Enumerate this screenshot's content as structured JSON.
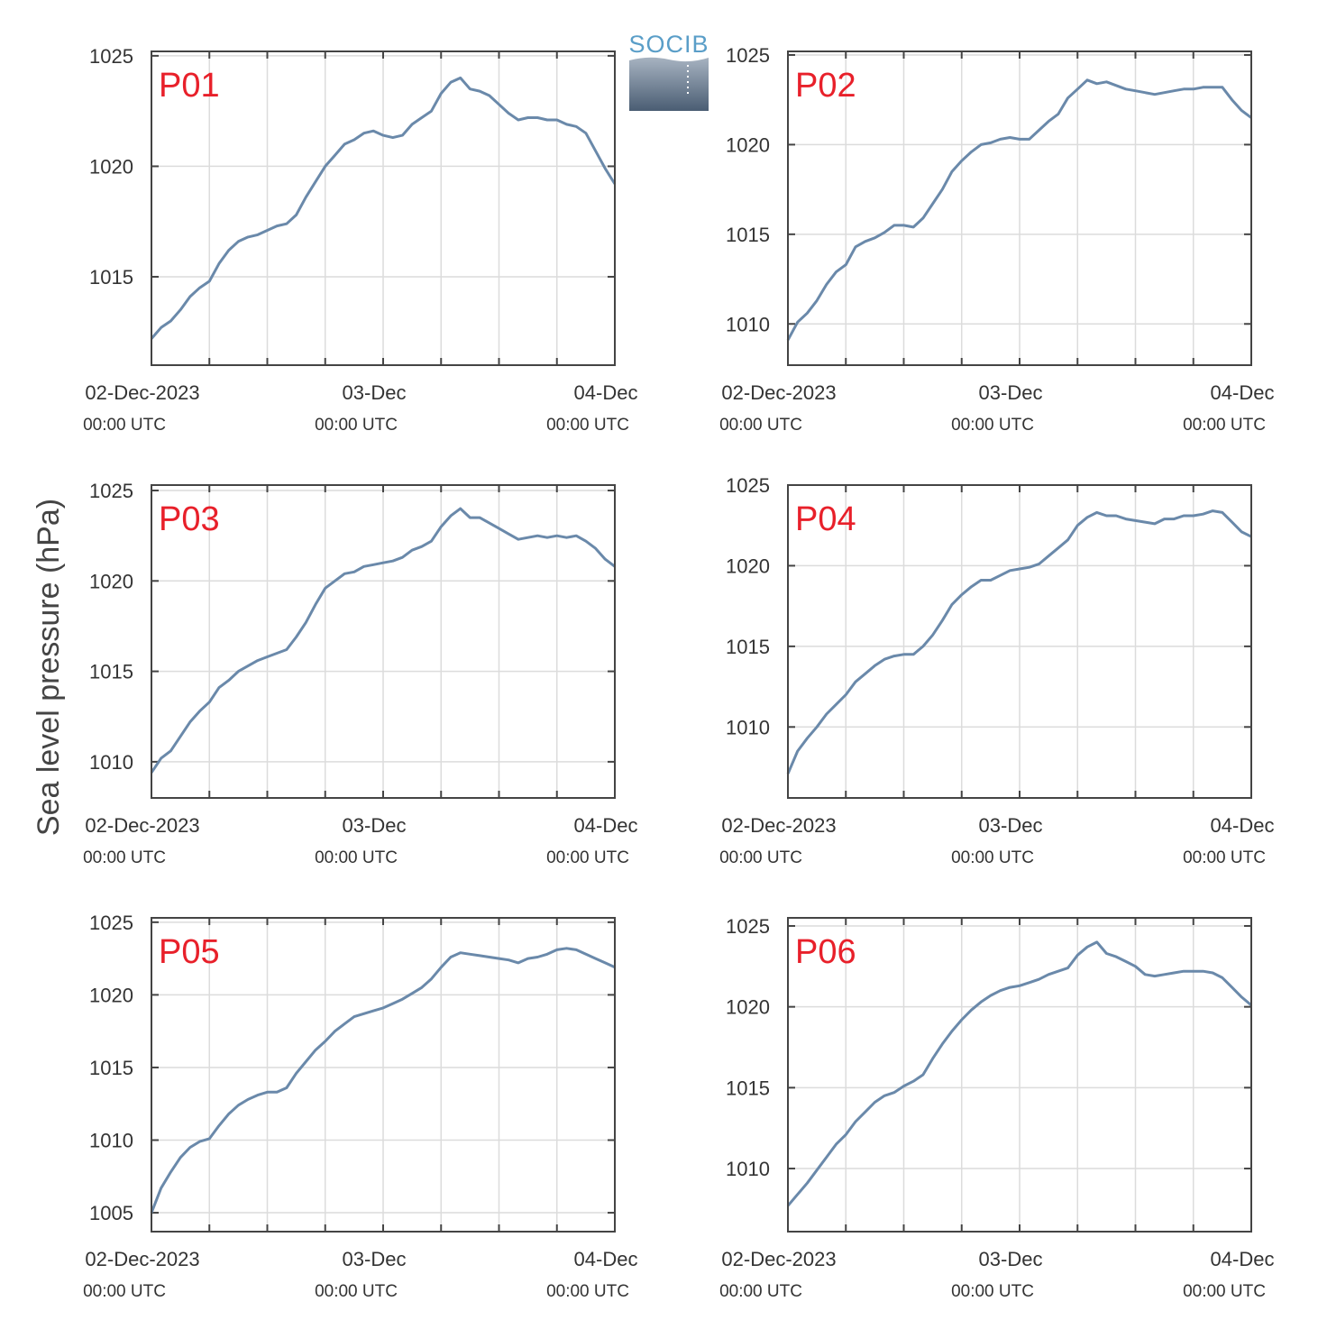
{
  "figure": {
    "ylabel": "Sea level pressure (hPa)",
    "logo_text": "SOCIB"
  },
  "chart_data": [
    {
      "type": "line",
      "panel_label": "P01",
      "ylim": [
        1011,
        1025.2
      ],
      "yticks": [
        1015,
        1020,
        1025
      ],
      "x_tick_labels": [
        "02-Dec-2023",
        "03-Dec",
        "04-Dec"
      ],
      "x_tick_sublabels": [
        "00:00 UTC",
        "00:00 UTC",
        "00:00 UTC"
      ],
      "xlim_hours": [
        0,
        48
      ],
      "grid": true,
      "series": [
        {
          "x": [
            0,
            1,
            2,
            3,
            4,
            5,
            6,
            7,
            8,
            9,
            10,
            11,
            12,
            13,
            14,
            15,
            16,
            17,
            18,
            19,
            20,
            21,
            22,
            23,
            24,
            25,
            26,
            27,
            28,
            29,
            30,
            31,
            32,
            33,
            34,
            35,
            36,
            37,
            38,
            39,
            40,
            41,
            42,
            43,
            44,
            45,
            46,
            47,
            48
          ],
          "values": [
            1012.2,
            1012.7,
            1013.0,
            1013.5,
            1014.1,
            1014.5,
            1014.8,
            1015.6,
            1016.2,
            1016.6,
            1016.8,
            1016.9,
            1017.1,
            1017.3,
            1017.4,
            1017.8,
            1018.6,
            1019.3,
            1020.0,
            1020.5,
            1021.0,
            1021.2,
            1021.5,
            1021.6,
            1021.4,
            1021.3,
            1021.4,
            1021.9,
            1022.2,
            1022.5,
            1023.3,
            1023.8,
            1024.0,
            1023.5,
            1023.4,
            1023.2,
            1022.8,
            1022.4,
            1022.1,
            1022.2,
            1022.2,
            1022.1,
            1022.1,
            1021.9,
            1021.8,
            1021.5,
            1020.7,
            1019.9,
            1019.2
          ]
        }
      ]
    },
    {
      "type": "line",
      "panel_label": "P02",
      "ylim": [
        1007.7,
        1025.2
      ],
      "yticks": [
        1010,
        1015,
        1020,
        1025
      ],
      "x_tick_labels": [
        "02-Dec-2023",
        "03-Dec",
        "04-Dec"
      ],
      "x_tick_sublabels": [
        "00:00 UTC",
        "00:00 UTC",
        "00:00 UTC"
      ],
      "xlim_hours": [
        0,
        48
      ],
      "grid": true,
      "series": [
        {
          "x": [
            0,
            1,
            2,
            3,
            4,
            5,
            6,
            7,
            8,
            9,
            10,
            11,
            12,
            13,
            14,
            15,
            16,
            17,
            18,
            19,
            20,
            21,
            22,
            23,
            24,
            25,
            26,
            27,
            28,
            29,
            30,
            31,
            32,
            33,
            34,
            35,
            36,
            37,
            38,
            39,
            40,
            41,
            42,
            43,
            44,
            45,
            46,
            47,
            48
          ],
          "values": [
            1009.1,
            1010.1,
            1010.6,
            1011.3,
            1012.2,
            1012.9,
            1013.3,
            1014.3,
            1014.6,
            1014.8,
            1015.1,
            1015.5,
            1015.5,
            1015.4,
            1015.9,
            1016.7,
            1017.5,
            1018.5,
            1019.1,
            1019.6,
            1020.0,
            1020.1,
            1020.3,
            1020.4,
            1020.3,
            1020.3,
            1020.8,
            1021.3,
            1021.7,
            1022.6,
            1023.1,
            1023.6,
            1023.4,
            1023.5,
            1023.3,
            1023.1,
            1023.0,
            1022.9,
            1022.8,
            1022.9,
            1023.0,
            1023.1,
            1023.1,
            1023.2,
            1023.2,
            1023.2,
            1022.5,
            1021.9,
            1021.5
          ]
        }
      ]
    },
    {
      "type": "line",
      "panel_label": "P03",
      "ylim": [
        1008,
        1025.3
      ],
      "yticks": [
        1010,
        1015,
        1020,
        1025
      ],
      "x_tick_labels": [
        "02-Dec-2023",
        "03-Dec",
        "04-Dec"
      ],
      "x_tick_sublabels": [
        "00:00 UTC",
        "00:00 UTC",
        "00:00 UTC"
      ],
      "xlim_hours": [
        0,
        48
      ],
      "grid": true,
      "series": [
        {
          "x": [
            0,
            1,
            2,
            3,
            4,
            5,
            6,
            7,
            8,
            9,
            10,
            11,
            12,
            13,
            14,
            15,
            16,
            17,
            18,
            19,
            20,
            21,
            22,
            23,
            24,
            25,
            26,
            27,
            28,
            29,
            30,
            31,
            32,
            33,
            34,
            35,
            36,
            37,
            38,
            39,
            40,
            41,
            42,
            43,
            44,
            45,
            46,
            47,
            48
          ],
          "values": [
            1009.4,
            1010.2,
            1010.6,
            1011.4,
            1012.2,
            1012.8,
            1013.3,
            1014.1,
            1014.5,
            1015.0,
            1015.3,
            1015.6,
            1015.8,
            1016.0,
            1016.2,
            1016.9,
            1017.7,
            1018.7,
            1019.6,
            1020.0,
            1020.4,
            1020.5,
            1020.8,
            1020.9,
            1021.0,
            1021.1,
            1021.3,
            1021.7,
            1021.9,
            1022.2,
            1023.0,
            1023.6,
            1024.0,
            1023.5,
            1023.5,
            1023.2,
            1022.9,
            1022.6,
            1022.3,
            1022.4,
            1022.5,
            1022.4,
            1022.5,
            1022.4,
            1022.5,
            1022.2,
            1021.8,
            1021.2,
            1020.8
          ]
        }
      ]
    },
    {
      "type": "line",
      "panel_label": "P04",
      "ylim": [
        1005.6,
        1025.0
      ],
      "yticks": [
        1010,
        1015,
        1020,
        1025
      ],
      "x_tick_labels": [
        "02-Dec-2023",
        "03-Dec",
        "04-Dec"
      ],
      "x_tick_sublabels": [
        "00:00 UTC",
        "00:00 UTC",
        "00:00 UTC"
      ],
      "xlim_hours": [
        0,
        48
      ],
      "grid": true,
      "series": [
        {
          "x": [
            0,
            1,
            2,
            3,
            4,
            5,
            6,
            7,
            8,
            9,
            10,
            11,
            12,
            13,
            14,
            15,
            16,
            17,
            18,
            19,
            20,
            21,
            22,
            23,
            24,
            25,
            26,
            27,
            28,
            29,
            30,
            31,
            32,
            33,
            34,
            35,
            36,
            37,
            38,
            39,
            40,
            41,
            42,
            43,
            44,
            45,
            46,
            47,
            48
          ],
          "values": [
            1007.1,
            1008.5,
            1009.3,
            1010.0,
            1010.8,
            1011.4,
            1012.0,
            1012.8,
            1013.3,
            1013.8,
            1014.2,
            1014.4,
            1014.5,
            1014.5,
            1015.0,
            1015.7,
            1016.6,
            1017.6,
            1018.2,
            1018.7,
            1019.1,
            1019.1,
            1019.4,
            1019.7,
            1019.8,
            1019.9,
            1020.1,
            1020.6,
            1021.1,
            1021.6,
            1022.5,
            1023.0,
            1023.3,
            1023.1,
            1023.1,
            1022.9,
            1022.8,
            1022.7,
            1022.6,
            1022.9,
            1022.9,
            1023.1,
            1023.1,
            1023.2,
            1023.4,
            1023.3,
            1022.7,
            1022.1,
            1021.8
          ]
        }
      ]
    },
    {
      "type": "line",
      "panel_label": "P05",
      "ylim": [
        1003.7,
        1025.3
      ],
      "yticks": [
        1005,
        1010,
        1015,
        1020,
        1025
      ],
      "x_tick_labels": [
        "02-Dec-2023",
        "03-Dec",
        "04-Dec"
      ],
      "x_tick_sublabels": [
        "00:00 UTC",
        "00:00 UTC",
        "00:00 UTC"
      ],
      "xlim_hours": [
        0,
        48
      ],
      "grid": true,
      "series": [
        {
          "x": [
            0,
            1,
            2,
            3,
            4,
            5,
            6,
            7,
            8,
            9,
            10,
            11,
            12,
            13,
            14,
            15,
            16,
            17,
            18,
            19,
            20,
            21,
            22,
            23,
            24,
            25,
            26,
            27,
            28,
            29,
            30,
            31,
            32,
            33,
            34,
            35,
            36,
            37,
            38,
            39,
            40,
            41,
            42,
            43,
            44,
            45,
            46,
            47,
            48
          ],
          "values": [
            1005.0,
            1006.7,
            1007.8,
            1008.8,
            1009.5,
            1009.9,
            1010.1,
            1011.0,
            1011.8,
            1012.4,
            1012.8,
            1013.1,
            1013.3,
            1013.3,
            1013.6,
            1014.6,
            1015.4,
            1016.2,
            1016.8,
            1017.5,
            1018.0,
            1018.5,
            1018.7,
            1018.9,
            1019.1,
            1019.4,
            1019.7,
            1020.1,
            1020.5,
            1021.1,
            1021.9,
            1022.6,
            1022.9,
            1022.8,
            1022.7,
            1022.6,
            1022.5,
            1022.4,
            1022.2,
            1022.5,
            1022.6,
            1022.8,
            1023.1,
            1023.2,
            1023.1,
            1022.8,
            1022.5,
            1022.2,
            1021.9
          ]
        }
      ]
    },
    {
      "type": "line",
      "panel_label": "P06",
      "ylim": [
        1006.1,
        1025.5
      ],
      "yticks": [
        1010,
        1015,
        1020,
        1025
      ],
      "x_tick_labels": [
        "02-Dec-2023",
        "03-Dec",
        "04-Dec"
      ],
      "x_tick_sublabels": [
        "00:00 UTC",
        "00:00 UTC",
        "00:00 UTC"
      ],
      "xlim_hours": [
        0,
        48
      ],
      "grid": true,
      "series": [
        {
          "x": [
            0,
            1,
            2,
            3,
            4,
            5,
            6,
            7,
            8,
            9,
            10,
            11,
            12,
            13,
            14,
            15,
            16,
            17,
            18,
            19,
            20,
            21,
            22,
            23,
            24,
            25,
            26,
            27,
            28,
            29,
            30,
            31,
            32,
            33,
            34,
            35,
            36,
            37,
            38,
            39,
            40,
            41,
            42,
            43,
            44,
            45,
            46,
            47,
            48
          ],
          "values": [
            1007.7,
            1008.4,
            1009.1,
            1009.9,
            1010.7,
            1011.5,
            1012.1,
            1012.9,
            1013.5,
            1014.1,
            1014.5,
            1014.7,
            1015.1,
            1015.4,
            1015.8,
            1016.8,
            1017.7,
            1018.5,
            1019.2,
            1019.8,
            1020.3,
            1020.7,
            1021.0,
            1021.2,
            1021.3,
            1021.5,
            1021.7,
            1022.0,
            1022.2,
            1022.4,
            1023.2,
            1023.7,
            1024.0,
            1023.3,
            1023.1,
            1022.8,
            1022.5,
            1022.0,
            1021.9,
            1022.0,
            1022.1,
            1022.2,
            1022.2,
            1022.2,
            1022.1,
            1021.8,
            1021.2,
            1020.6,
            1020.1
          ]
        }
      ]
    }
  ]
}
